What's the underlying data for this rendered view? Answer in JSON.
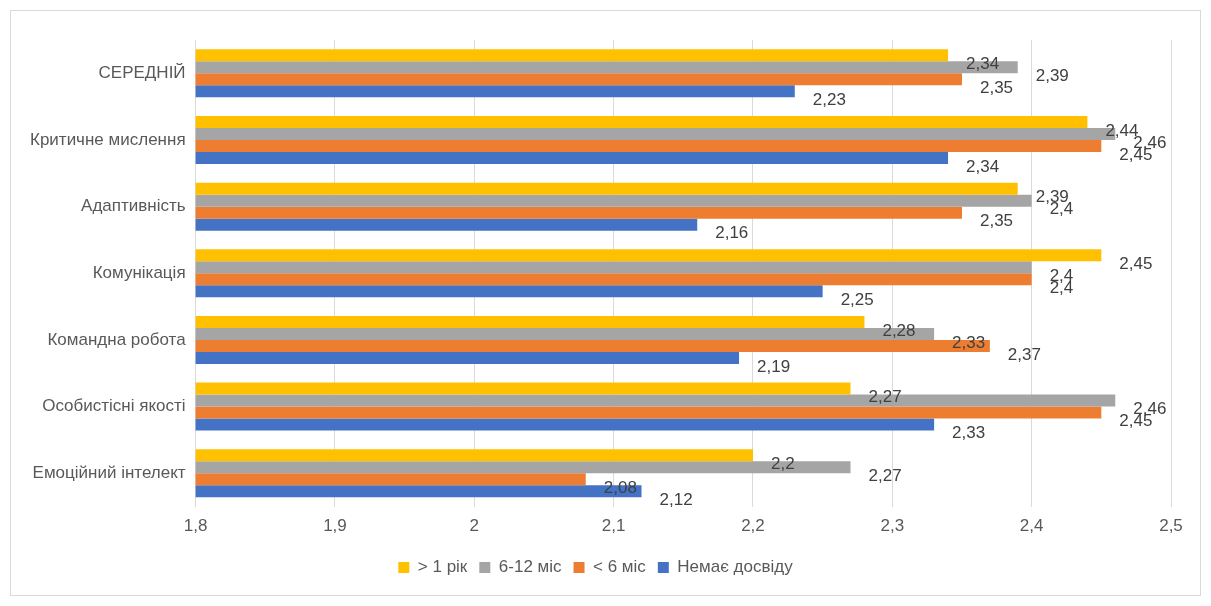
{
  "chart_data": {
    "type": "bar",
    "orientation": "horizontal",
    "categories": [
      "СЕРЕДНІЙ",
      "Критичне мислення",
      "Адаптивність",
      "Комунікація",
      "Командна робота",
      "Особистісні якості",
      "Емоційний інтелект"
    ],
    "series": [
      {
        "name": "> 1 рік",
        "color": "#ffc000",
        "values": [
          2.34,
          2.44,
          2.39,
          2.45,
          2.28,
          2.27,
          2.2
        ],
        "value_labels": [
          "2,34",
          "2,44",
          "2,39",
          "2,45",
          "2,28",
          "2,27",
          "2,2"
        ]
      },
      {
        "name": "6-12 міс",
        "color": "#a5a5a5",
        "values": [
          2.39,
          2.46,
          2.4,
          2.4,
          2.33,
          2.46,
          2.27
        ],
        "value_labels": [
          "2,39",
          "2,46",
          "2,4",
          "2,4",
          "2,33",
          "2,46",
          "2,27"
        ]
      },
      {
        "name": "< 6 міс",
        "color": "#ed7d31",
        "values": [
          2.35,
          2.45,
          2.35,
          2.4,
          2.37,
          2.45,
          2.08
        ],
        "value_labels": [
          "2,35",
          "2,45",
          "2,35",
          "2,4",
          "2,37",
          "2,45",
          "2,08"
        ]
      },
      {
        "name": "Немає досвіду",
        "color": "#4472c4",
        "values": [
          2.23,
          2.34,
          2.16,
          2.25,
          2.19,
          2.33,
          2.12
        ],
        "value_labels": [
          "2,23",
          "2,34",
          "2,16",
          "2,25",
          "2,19",
          "2,33",
          "2,12"
        ]
      }
    ],
    "xlim": [
      1.8,
      2.5
    ],
    "xticks": [
      {
        "value": 1.8,
        "label": "1,8"
      },
      {
        "value": 1.9,
        "label": "1,9"
      },
      {
        "value": 2,
        "label": "2"
      },
      {
        "value": 2.1,
        "label": "2,1"
      },
      {
        "value": 2.2,
        "label": "2,2"
      },
      {
        "value": 2.3,
        "label": "2,3"
      },
      {
        "value": 2.4,
        "label": "2,4"
      },
      {
        "value": 2.5,
        "label": "2,5"
      }
    ],
    "grid": "x",
    "legend": "bottom"
  }
}
